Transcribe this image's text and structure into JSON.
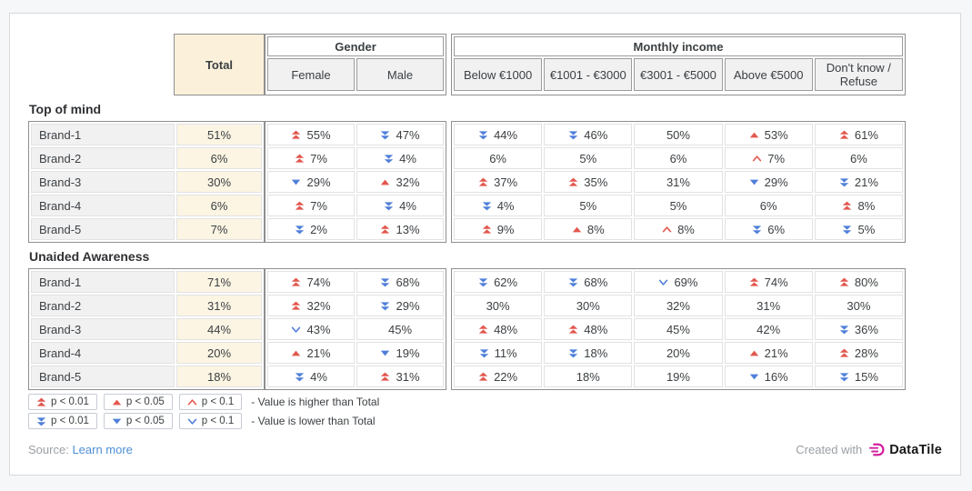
{
  "header": {
    "total": "Total",
    "groups": [
      {
        "label": "Gender",
        "columns": [
          "Female",
          "Male"
        ]
      },
      {
        "label": "Monthly income",
        "columns": [
          "Below €1000",
          "€1001 - €3000",
          "€3001 - €5000",
          "Above €5000",
          "Don't know / Refuse"
        ]
      }
    ]
  },
  "sections": [
    {
      "title": "Top of mind",
      "rows": [
        {
          "label": "Brand-1",
          "total": "51%",
          "gender": [
            {
              "v": "55%",
              "sig": "up2"
            },
            {
              "v": "47%",
              "sig": "down2"
            }
          ],
          "income": [
            {
              "v": "44%",
              "sig": "down2"
            },
            {
              "v": "46%",
              "sig": "down2"
            },
            {
              "v": "50%",
              "sig": "none"
            },
            {
              "v": "53%",
              "sig": "up1"
            },
            {
              "v": "61%",
              "sig": "up2"
            }
          ]
        },
        {
          "label": "Brand-2",
          "total": "6%",
          "gender": [
            {
              "v": "7%",
              "sig": "up2"
            },
            {
              "v": "4%",
              "sig": "down2"
            }
          ],
          "income": [
            {
              "v": "6%",
              "sig": "none"
            },
            {
              "v": "5%",
              "sig": "none"
            },
            {
              "v": "6%",
              "sig": "none"
            },
            {
              "v": "7%",
              "sig": "up0"
            },
            {
              "v": "6%",
              "sig": "none"
            }
          ]
        },
        {
          "label": "Brand-3",
          "total": "30%",
          "gender": [
            {
              "v": "29%",
              "sig": "down1"
            },
            {
              "v": "32%",
              "sig": "up1"
            }
          ],
          "income": [
            {
              "v": "37%",
              "sig": "up2"
            },
            {
              "v": "35%",
              "sig": "up2"
            },
            {
              "v": "31%",
              "sig": "none"
            },
            {
              "v": "29%",
              "sig": "down1"
            },
            {
              "v": "21%",
              "sig": "down2"
            }
          ]
        },
        {
          "label": "Brand-4",
          "total": "6%",
          "gender": [
            {
              "v": "7%",
              "sig": "up2"
            },
            {
              "v": "4%",
              "sig": "down2"
            }
          ],
          "income": [
            {
              "v": "4%",
              "sig": "down2"
            },
            {
              "v": "5%",
              "sig": "none"
            },
            {
              "v": "5%",
              "sig": "none"
            },
            {
              "v": "6%",
              "sig": "none"
            },
            {
              "v": "8%",
              "sig": "up2"
            }
          ]
        },
        {
          "label": "Brand-5",
          "total": "7%",
          "gender": [
            {
              "v": "2%",
              "sig": "down2"
            },
            {
              "v": "13%",
              "sig": "up2"
            }
          ],
          "income": [
            {
              "v": "9%",
              "sig": "up2"
            },
            {
              "v": "8%",
              "sig": "up1"
            },
            {
              "v": "8%",
              "sig": "up0"
            },
            {
              "v": "6%",
              "sig": "down2"
            },
            {
              "v": "5%",
              "sig": "down2"
            }
          ]
        }
      ]
    },
    {
      "title": "Unaided Awareness",
      "rows": [
        {
          "label": "Brand-1",
          "total": "71%",
          "gender": [
            {
              "v": "74%",
              "sig": "up2"
            },
            {
              "v": "68%",
              "sig": "down2"
            }
          ],
          "income": [
            {
              "v": "62%",
              "sig": "down2"
            },
            {
              "v": "68%",
              "sig": "down2"
            },
            {
              "v": "69%",
              "sig": "down0"
            },
            {
              "v": "74%",
              "sig": "up2"
            },
            {
              "v": "80%",
              "sig": "up2"
            }
          ]
        },
        {
          "label": "Brand-2",
          "total": "31%",
          "gender": [
            {
              "v": "32%",
              "sig": "up2"
            },
            {
              "v": "29%",
              "sig": "down2"
            }
          ],
          "income": [
            {
              "v": "30%",
              "sig": "none"
            },
            {
              "v": "30%",
              "sig": "none"
            },
            {
              "v": "32%",
              "sig": "none"
            },
            {
              "v": "31%",
              "sig": "none"
            },
            {
              "v": "30%",
              "sig": "none"
            }
          ]
        },
        {
          "label": "Brand-3",
          "total": "44%",
          "gender": [
            {
              "v": "43%",
              "sig": "down0"
            },
            {
              "v": "45%",
              "sig": "none"
            }
          ],
          "income": [
            {
              "v": "48%",
              "sig": "up2"
            },
            {
              "v": "48%",
              "sig": "up2"
            },
            {
              "v": "45%",
              "sig": "none"
            },
            {
              "v": "42%",
              "sig": "none"
            },
            {
              "v": "36%",
              "sig": "down2"
            }
          ]
        },
        {
          "label": "Brand-4",
          "total": "20%",
          "gender": [
            {
              "v": "21%",
              "sig": "up1"
            },
            {
              "v": "19%",
              "sig": "down1"
            }
          ],
          "income": [
            {
              "v": "11%",
              "sig": "down2"
            },
            {
              "v": "18%",
              "sig": "down2"
            },
            {
              "v": "20%",
              "sig": "none"
            },
            {
              "v": "21%",
              "sig": "up1"
            },
            {
              "v": "28%",
              "sig": "up2"
            }
          ]
        },
        {
          "label": "Brand-5",
          "total": "18%",
          "gender": [
            {
              "v": "4%",
              "sig": "down2"
            },
            {
              "v": "31%",
              "sig": "up2"
            }
          ],
          "income": [
            {
              "v": "22%",
              "sig": "up2"
            },
            {
              "v": "18%",
              "sig": "none"
            },
            {
              "v": "19%",
              "sig": "none"
            },
            {
              "v": "16%",
              "sig": "down1"
            },
            {
              "v": "15%",
              "sig": "down2"
            }
          ]
        }
      ]
    }
  ],
  "legend": {
    "higher": {
      "items": [
        {
          "sig": "up2",
          "label": "p < 0.01"
        },
        {
          "sig": "up1",
          "label": "p < 0.05"
        },
        {
          "sig": "up0",
          "label": "p < 0.1"
        }
      ],
      "note": "- Value is higher than Total"
    },
    "lower": {
      "items": [
        {
          "sig": "down2",
          "label": "p < 0.01"
        },
        {
          "sig": "down1",
          "label": "p < 0.05"
        },
        {
          "sig": "down0",
          "label": "p < 0.1"
        }
      ],
      "note": "- Value is lower than Total"
    }
  },
  "footer": {
    "source_label": "Source:",
    "source_link": "Learn more",
    "created_with": "Created with",
    "brand": "DataTile"
  },
  "colors": {
    "higher": "#e2574d",
    "lower": "#4f7fd9",
    "total_header_bg": "#fbf0da",
    "total_cell_bg": "#fcf5e3",
    "brand_logo": "#d4219f"
  }
}
